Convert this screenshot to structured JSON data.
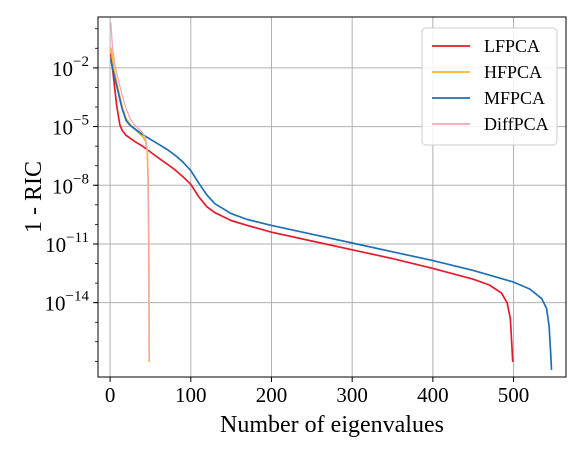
{
  "chart_data": {
    "type": "line",
    "xlabel": "Number of eigenvalues",
    "ylabel": "1 - RIC",
    "xlim": [
      -15,
      565
    ],
    "ylim_log10": [
      -17.8,
      0.6
    ],
    "y_scale": "log",
    "grid": true,
    "legend_position": "top-right",
    "x_ticks": [
      0,
      100,
      200,
      300,
      400,
      500
    ],
    "y_ticks": [
      {
        "base": "10",
        "exp": "−2",
        "log10": -2
      },
      {
        "base": "10",
        "exp": "−5",
        "log10": -5
      },
      {
        "base": "10",
        "exp": "−8",
        "log10": -8
      },
      {
        "base": "10",
        "exp": "−11",
        "log10": -11
      },
      {
        "base": "10",
        "exp": "−14",
        "log10": -14
      }
    ],
    "series": [
      {
        "name": "LFPCA",
        "color": "#e41a2c",
        "points_log10": [
          [
            1,
            -1.3
          ],
          [
            4,
            -2.4
          ],
          [
            8,
            -3.9
          ],
          [
            12,
            -4.9
          ],
          [
            15,
            -5.2
          ],
          [
            20,
            -5.45
          ],
          [
            30,
            -5.75
          ],
          [
            40,
            -6.0
          ],
          [
            50,
            -6.3
          ],
          [
            60,
            -6.6
          ],
          [
            70,
            -6.9
          ],
          [
            80,
            -7.2
          ],
          [
            90,
            -7.55
          ],
          [
            100,
            -7.95
          ],
          [
            110,
            -8.6
          ],
          [
            120,
            -9.1
          ],
          [
            130,
            -9.4
          ],
          [
            140,
            -9.6
          ],
          [
            150,
            -9.8
          ],
          [
            170,
            -10.05
          ],
          [
            200,
            -10.4
          ],
          [
            250,
            -10.85
          ],
          [
            300,
            -11.3
          ],
          [
            350,
            -11.75
          ],
          [
            400,
            -12.25
          ],
          [
            450,
            -12.8
          ],
          [
            470,
            -13.1
          ],
          [
            485,
            -13.5
          ],
          [
            492,
            -14.0
          ],
          [
            496,
            -14.8
          ],
          [
            498,
            -16.2
          ],
          [
            499,
            -17.0
          ]
        ]
      },
      {
        "name": "HFPCA",
        "color": "#f7b924",
        "points_log10": [
          [
            1,
            -1.0
          ],
          [
            5,
            -2.1
          ],
          [
            10,
            -3.1
          ],
          [
            15,
            -4.0
          ],
          [
            20,
            -4.6
          ],
          [
            25,
            -4.9
          ],
          [
            30,
            -5.1
          ],
          [
            35,
            -5.3
          ],
          [
            40,
            -5.5
          ],
          [
            44,
            -5.75
          ],
          [
            46,
            -6.2
          ],
          [
            47,
            -7.5
          ],
          [
            48,
            -11.0
          ],
          [
            48.5,
            -17.0
          ]
        ]
      },
      {
        "name": "MFPCA",
        "color": "#1f6fb4",
        "points_log10": [
          [
            1,
            -1.6
          ],
          [
            4,
            -2.2
          ],
          [
            8,
            -2.9
          ],
          [
            15,
            -4.1
          ],
          [
            20,
            -4.7
          ],
          [
            25,
            -4.95
          ],
          [
            30,
            -5.1
          ],
          [
            40,
            -5.4
          ],
          [
            50,
            -5.65
          ],
          [
            60,
            -5.9
          ],
          [
            70,
            -6.15
          ],
          [
            80,
            -6.45
          ],
          [
            90,
            -6.8
          ],
          [
            100,
            -7.25
          ],
          [
            110,
            -7.9
          ],
          [
            120,
            -8.5
          ],
          [
            130,
            -8.95
          ],
          [
            140,
            -9.2
          ],
          [
            150,
            -9.45
          ],
          [
            170,
            -9.75
          ],
          [
            200,
            -10.05
          ],
          [
            250,
            -10.5
          ],
          [
            300,
            -10.95
          ],
          [
            350,
            -11.4
          ],
          [
            400,
            -11.85
          ],
          [
            450,
            -12.35
          ],
          [
            500,
            -12.95
          ],
          [
            520,
            -13.3
          ],
          [
            535,
            -13.8
          ],
          [
            541,
            -14.3
          ],
          [
            544,
            -15.2
          ],
          [
            546,
            -16.6
          ],
          [
            547,
            -17.4
          ]
        ]
      },
      {
        "name": "DiffPCA",
        "color": "#f4a6b4",
        "points_log10": [
          [
            1,
            0.3
          ],
          [
            3,
            -1.0
          ],
          [
            6,
            -1.8
          ],
          [
            10,
            -2.6
          ],
          [
            15,
            -3.4
          ],
          [
            20,
            -4.1
          ],
          [
            25,
            -4.6
          ],
          [
            30,
            -4.9
          ],
          [
            35,
            -5.1
          ],
          [
            40,
            -5.3
          ],
          [
            44,
            -5.6
          ],
          [
            46,
            -6.1
          ],
          [
            47,
            -7.3
          ],
          [
            48,
            -10.5
          ],
          [
            48.5,
            -16.9
          ]
        ]
      }
    ]
  }
}
